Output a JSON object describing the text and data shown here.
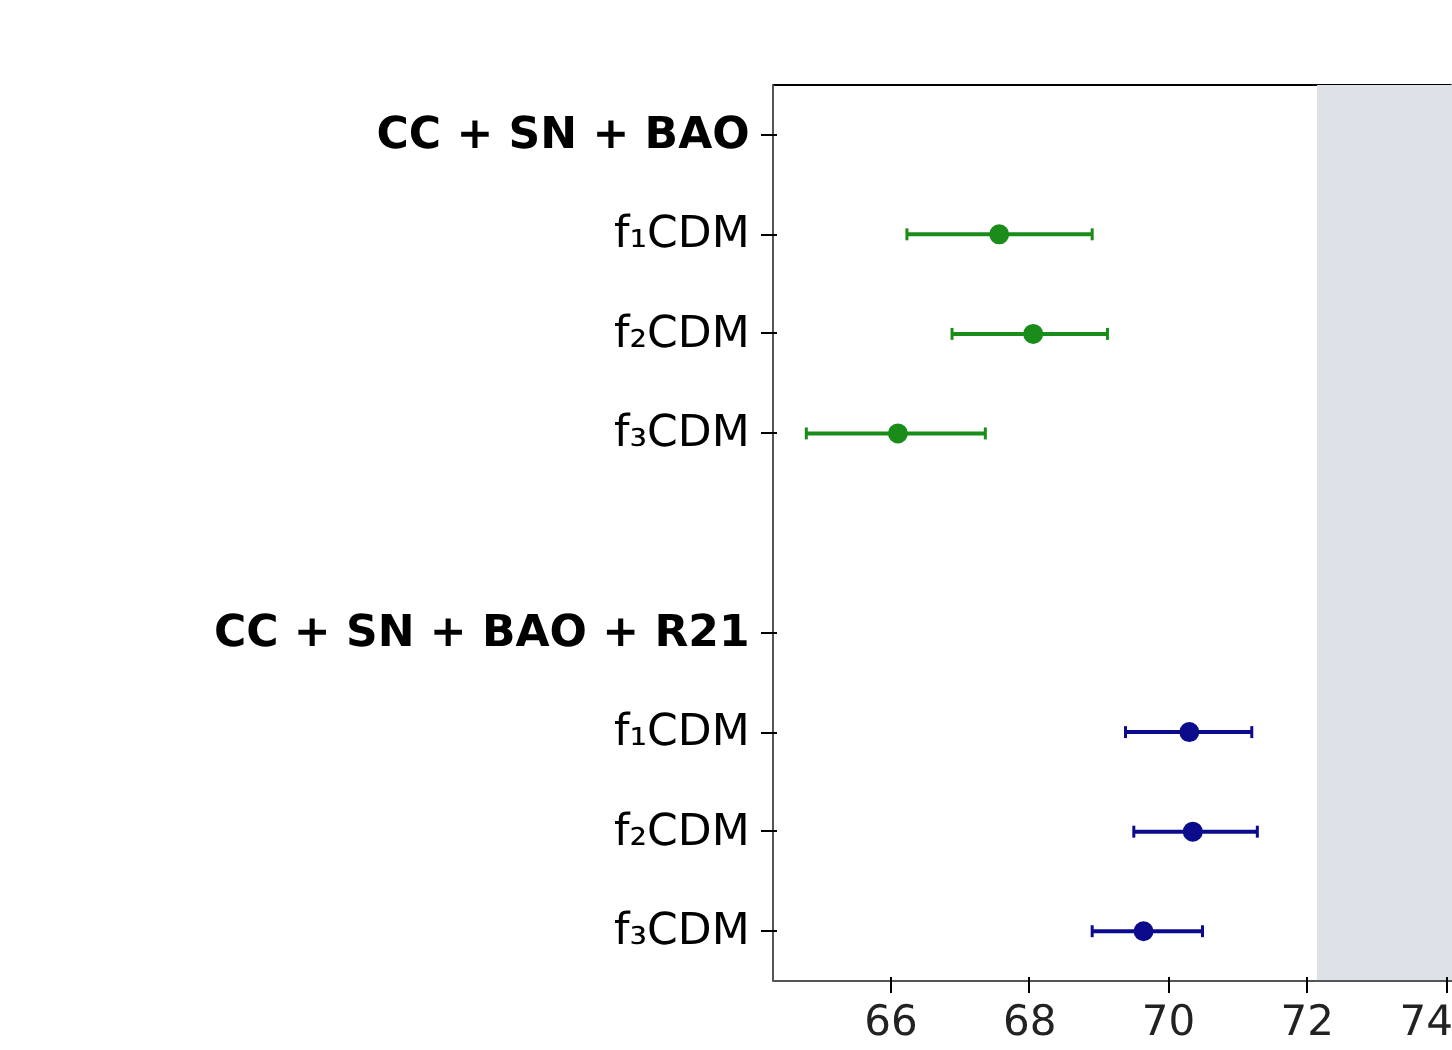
{
  "chart_data": {
    "type": "scatter",
    "categories": [
      "CC + SN + BAO",
      "f₁CDM",
      "f₂CDM",
      "f₃CDM",
      null,
      "CC + SN + BAO + R21",
      "f₁CDM",
      "f₂CDM",
      "f₃CDM"
    ],
    "series": [
      {
        "color": "#1a8c1a",
        "values": [
          null,
          67.56,
          68.05,
          66.1,
          null,
          null,
          null,
          null,
          null
        ],
        "errors": [
          null,
          [
            66.23,
            68.9
          ],
          [
            66.88,
            69.12
          ],
          [
            64.78,
            67.36
          ],
          null,
          null,
          null,
          null,
          null
        ]
      },
      {
        "color": "#0b0b8c",
        "values": [
          null,
          null,
          null,
          null,
          null,
          null,
          70.3,
          70.35,
          69.64
        ],
        "errors": [
          null,
          null,
          null,
          null,
          null,
          null,
          [
            69.38,
            71.2
          ],
          [
            69.5,
            71.28
          ],
          [
            68.9,
            70.49
          ]
        ]
      }
    ],
    "orientation": "horizontal",
    "xlim": [
      64.3,
      74.1
    ],
    "xticks": [
      66,
      68,
      70,
      72,
      74
    ],
    "bands": [
      {
        "axis": "x",
        "from": 72.14,
        "to": 74.1,
        "color": "#dfe1e8"
      }
    ],
    "marker": "circle",
    "grid": false
  }
}
